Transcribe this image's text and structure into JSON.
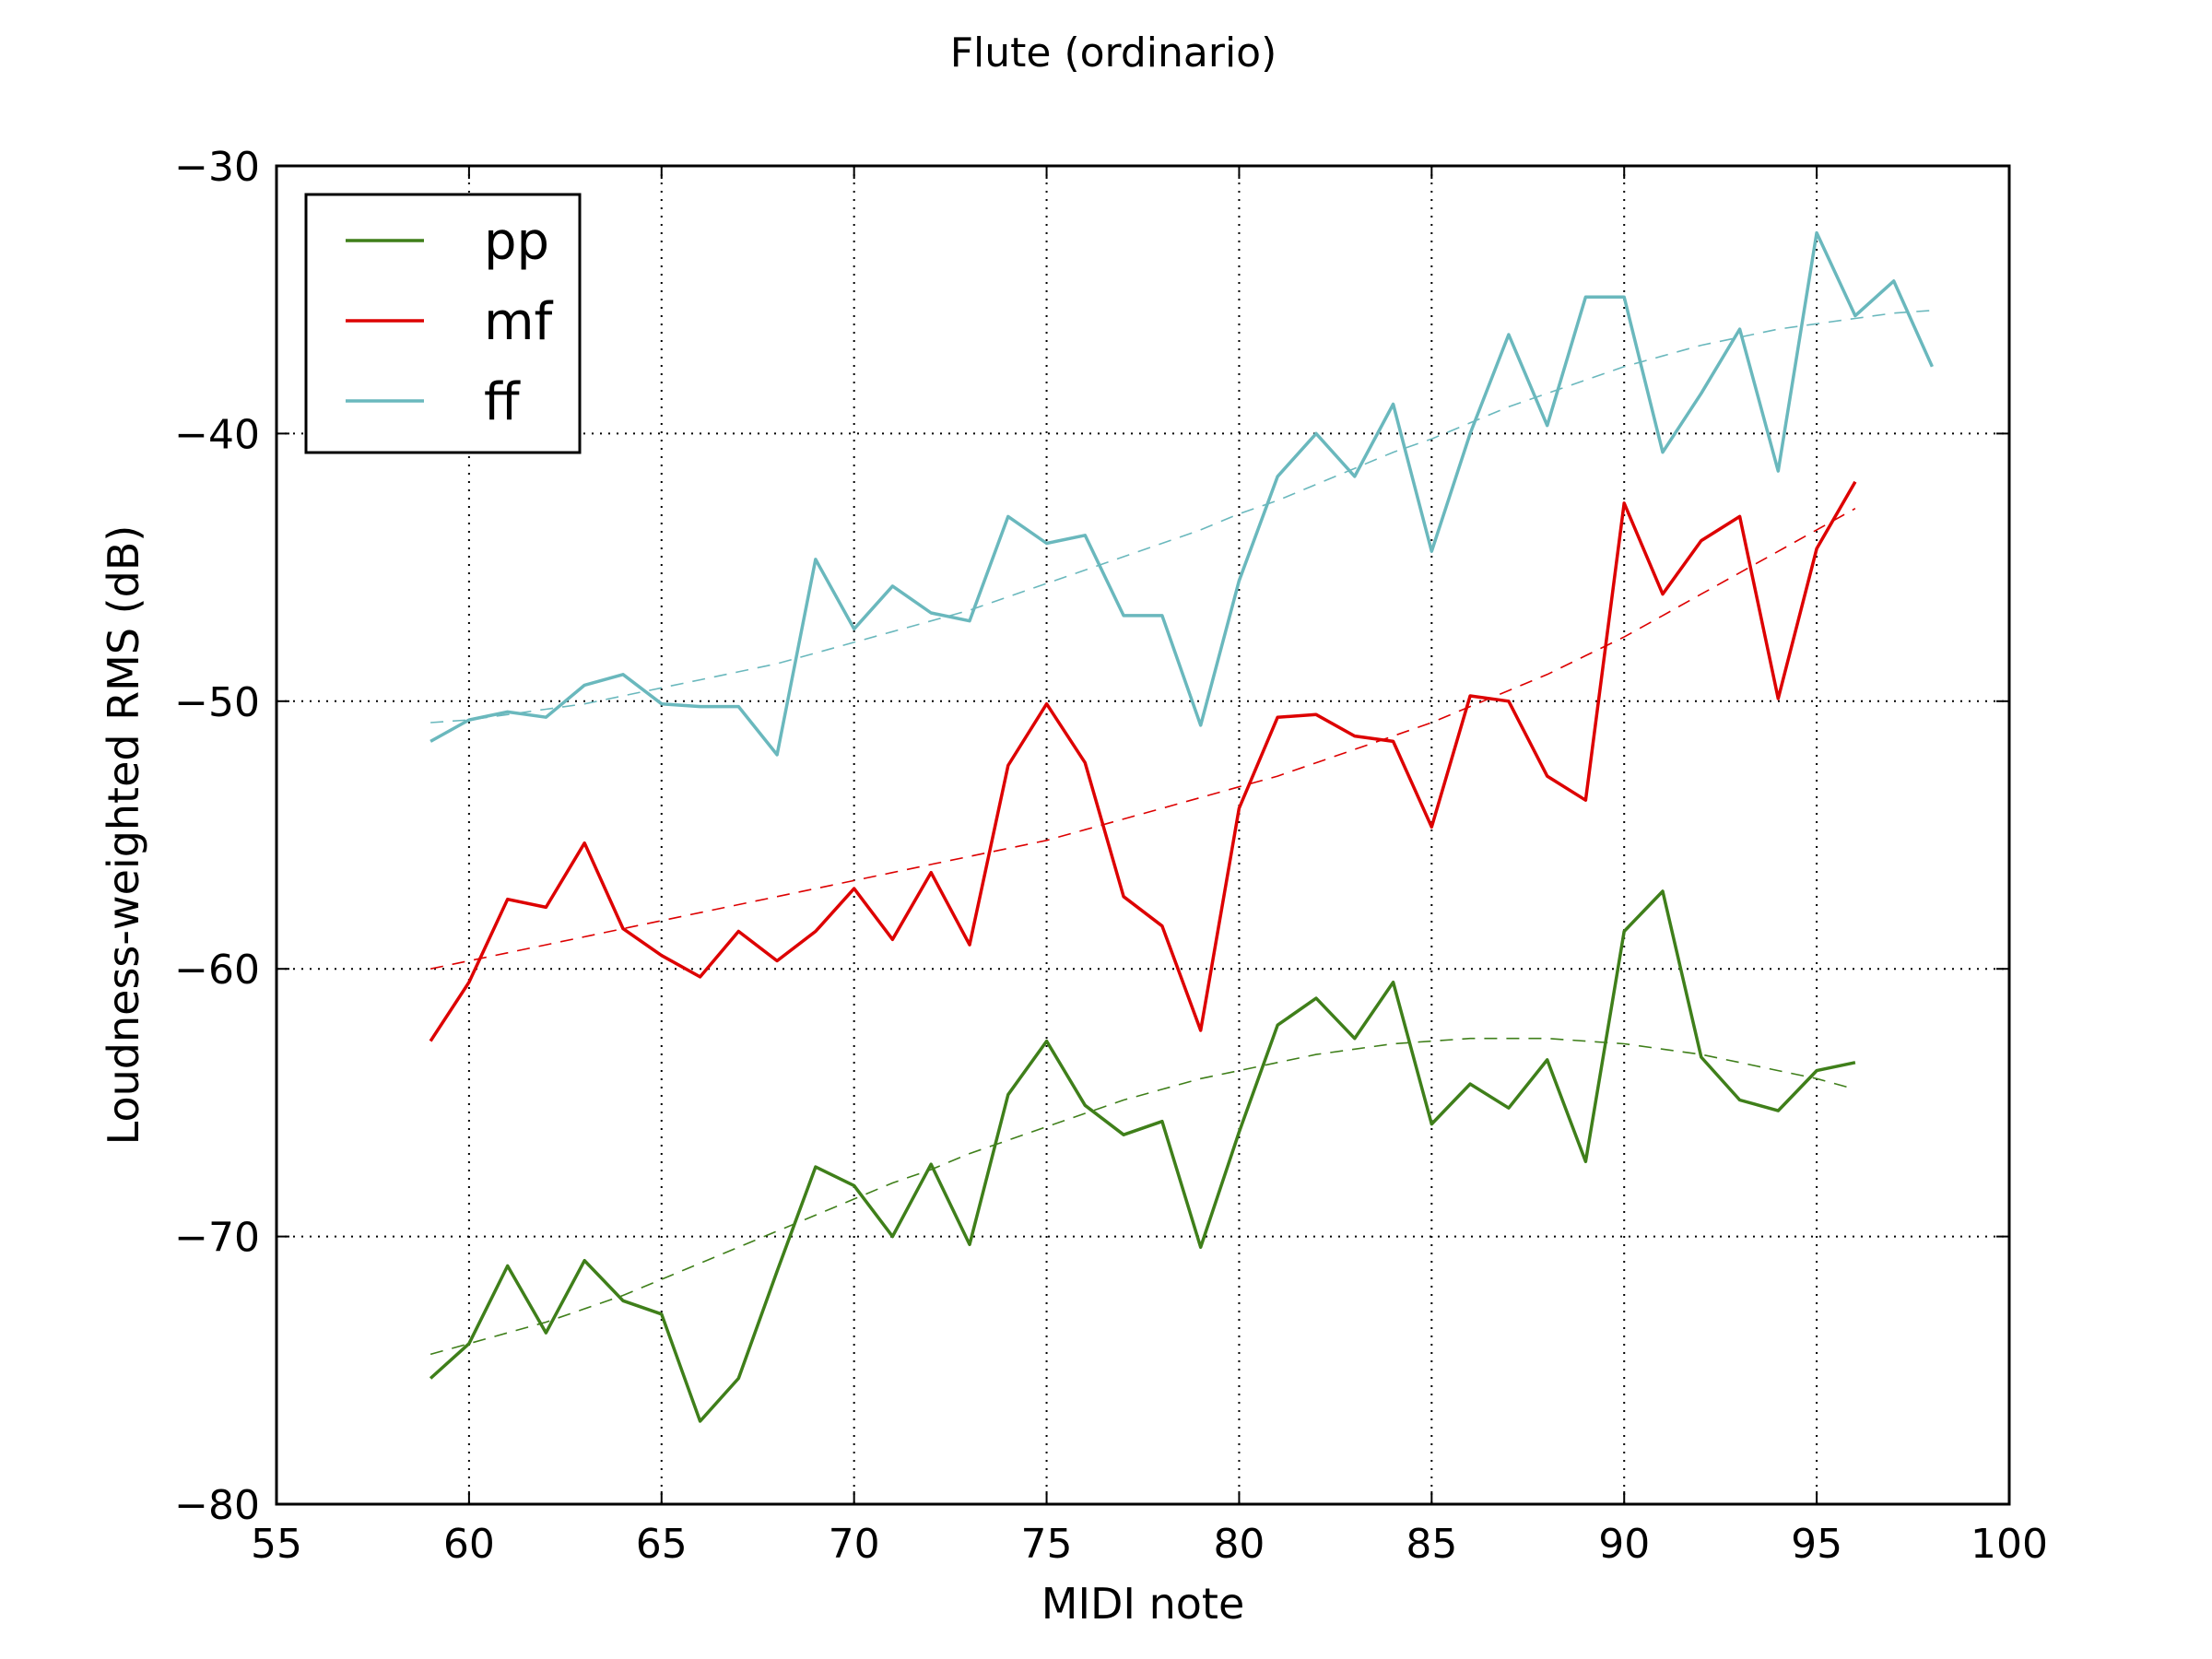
{
  "chart_data": {
    "type": "line",
    "title": "Flute (ordinario)",
    "xlabel": "MIDI note",
    "ylabel": "Loudness-weighted RMS (dB)",
    "xlim": [
      55,
      100
    ],
    "ylim": [
      -80,
      -30
    ],
    "xticks": [
      55,
      60,
      65,
      70,
      75,
      80,
      85,
      90,
      95,
      100
    ],
    "yticks": [
      -80,
      -70,
      -60,
      -50,
      -40,
      -30
    ],
    "xtick_labels": [
      "55",
      "60",
      "65",
      "70",
      "75",
      "80",
      "85",
      "90",
      "95",
      "100"
    ],
    "ytick_labels": [
      "−80",
      "−70",
      "−60",
      "−50",
      "−40",
      "−30"
    ],
    "grid": true,
    "legend_position": "top-left",
    "series": [
      {
        "name": "pp",
        "color": "#3f7f1a",
        "x": [
          59,
          60,
          61,
          62,
          63,
          64,
          65,
          66,
          67,
          68,
          69,
          70,
          71,
          72,
          73,
          74,
          75,
          76,
          77,
          78,
          79,
          80,
          81,
          82,
          83,
          84,
          85,
          86,
          87,
          88,
          89,
          90,
          91,
          92,
          93,
          94,
          95,
          96
        ],
        "values": [
          -75.3,
          -74.0,
          -71.1,
          -73.6,
          -70.9,
          -72.4,
          -72.9,
          -76.9,
          -75.3,
          -71.3,
          -67.4,
          -68.1,
          -70.0,
          -67.3,
          -70.3,
          -64.7,
          -62.7,
          -65.1,
          -66.2,
          -65.7,
          -70.4,
          -66.1,
          -62.1,
          -61.1,
          -62.6,
          -60.5,
          -65.8,
          -64.3,
          -65.2,
          -63.4,
          -67.2,
          -58.6,
          -57.1,
          -63.3,
          -64.9,
          -65.3,
          -63.8,
          -63.5
        ]
      },
      {
        "name": "mf",
        "color": "#dd0000",
        "x": [
          59,
          60,
          61,
          62,
          63,
          64,
          65,
          66,
          67,
          68,
          69,
          70,
          71,
          72,
          73,
          74,
          75,
          76,
          77,
          78,
          79,
          80,
          81,
          82,
          83,
          84,
          85,
          86,
          87,
          88,
          89,
          90,
          91,
          92,
          93,
          94,
          95,
          96
        ],
        "values": [
          -62.7,
          -60.5,
          -57.4,
          -57.7,
          -55.3,
          -58.5,
          -59.5,
          -60.3,
          -58.6,
          -59.7,
          -58.6,
          -57.0,
          -58.9,
          -56.4,
          -59.1,
          -52.4,
          -50.1,
          -52.3,
          -57.3,
          -58.4,
          -62.3,
          -54.0,
          -50.6,
          -50.5,
          -51.3,
          -51.5,
          -54.7,
          -49.8,
          -50.0,
          -52.8,
          -53.7,
          -42.6,
          -46.0,
          -44.0,
          -43.1,
          -49.9,
          -44.3,
          -41.8
        ]
      },
      {
        "name": "ff",
        "color": "#6ab8bd",
        "x": [
          59,
          60,
          61,
          62,
          63,
          64,
          65,
          66,
          67,
          68,
          69,
          70,
          71,
          72,
          73,
          74,
          75,
          76,
          77,
          78,
          79,
          80,
          81,
          82,
          83,
          84,
          85,
          86,
          87,
          88,
          89,
          90,
          91,
          92,
          93,
          94,
          95,
          96,
          97,
          98
        ],
        "values": [
          -51.5,
          -50.7,
          -50.4,
          -50.6,
          -49.4,
          -49.0,
          -50.1,
          -50.2,
          -50.2,
          -52.0,
          -44.7,
          -47.3,
          -45.7,
          -46.7,
          -47.0,
          -43.1,
          -44.1,
          -43.8,
          -46.8,
          -46.8,
          -50.9,
          -45.5,
          -41.6,
          -40.0,
          -41.6,
          -38.9,
          -44.4,
          -40.0,
          -36.3,
          -39.7,
          -34.9,
          -34.9,
          -40.7,
          -38.5,
          -36.1,
          -41.4,
          -32.5,
          -35.6,
          -34.3,
          -37.5
        ]
      }
    ],
    "fit_curves": [
      {
        "series": "pp",
        "style": "dashed",
        "x": [
          59,
          60,
          61,
          62,
          63,
          64,
          65,
          66,
          67,
          68,
          69,
          70,
          71,
          72,
          73,
          74,
          75,
          76,
          77,
          78,
          79,
          80,
          81,
          82,
          83,
          84,
          85,
          86,
          87,
          88,
          89,
          90,
          91,
          92,
          93,
          94,
          95,
          96
        ],
        "values": [
          -74.4,
          -74.0,
          -73.6,
          -73.2,
          -72.7,
          -72.2,
          -71.6,
          -71.0,
          -70.4,
          -69.8,
          -69.2,
          -68.6,
          -68.0,
          -67.5,
          -66.9,
          -66.4,
          -65.9,
          -65.4,
          -64.9,
          -64.5,
          -64.1,
          -63.8,
          -63.5,
          -63.2,
          -63.0,
          -62.8,
          -62.7,
          -62.6,
          -62.6,
          -62.6,
          -62.7,
          -62.8,
          -63.0,
          -63.2,
          -63.5,
          -63.8,
          -64.1,
          -64.5
        ]
      },
      {
        "series": "mf",
        "style": "dashed",
        "x": [
          59,
          60,
          61,
          62,
          63,
          64,
          65,
          66,
          67,
          68,
          69,
          70,
          71,
          72,
          73,
          74,
          75,
          76,
          77,
          78,
          79,
          80,
          81,
          82,
          83,
          84,
          85,
          86,
          87,
          88,
          89,
          90,
          91,
          92,
          93,
          94,
          95,
          96
        ],
        "values": [
          -60.0,
          -59.7,
          -59.4,
          -59.1,
          -58.8,
          -58.5,
          -58.2,
          -57.9,
          -57.6,
          -57.3,
          -57.0,
          -56.7,
          -56.4,
          -56.1,
          -55.8,
          -55.5,
          -55.2,
          -54.8,
          -54.4,
          -54.0,
          -53.6,
          -53.2,
          -52.8,
          -52.3,
          -51.8,
          -51.3,
          -50.8,
          -50.2,
          -49.6,
          -49.0,
          -48.3,
          -47.6,
          -46.8,
          -46.0,
          -45.2,
          -44.4,
          -43.6,
          -42.8
        ]
      },
      {
        "series": "ff",
        "style": "dashed",
        "x": [
          59,
          60,
          61,
          62,
          63,
          64,
          65,
          66,
          67,
          68,
          69,
          70,
          71,
          72,
          73,
          74,
          75,
          76,
          77,
          78,
          79,
          80,
          81,
          82,
          83,
          84,
          85,
          86,
          87,
          88,
          89,
          90,
          91,
          92,
          93,
          94,
          95,
          96,
          97,
          98
        ],
        "values": [
          -50.8,
          -50.7,
          -50.5,
          -50.3,
          -50.1,
          -49.8,
          -49.5,
          -49.2,
          -48.9,
          -48.6,
          -48.2,
          -47.8,
          -47.4,
          -47.0,
          -46.6,
          -46.1,
          -45.6,
          -45.1,
          -44.6,
          -44.1,
          -43.6,
          -43.0,
          -42.5,
          -41.9,
          -41.3,
          -40.7,
          -40.2,
          -39.6,
          -39.0,
          -38.5,
          -38.0,
          -37.5,
          -37.1,
          -36.7,
          -36.4,
          -36.1,
          -35.9,
          -35.7,
          -35.5,
          -35.4
        ]
      }
    ]
  }
}
